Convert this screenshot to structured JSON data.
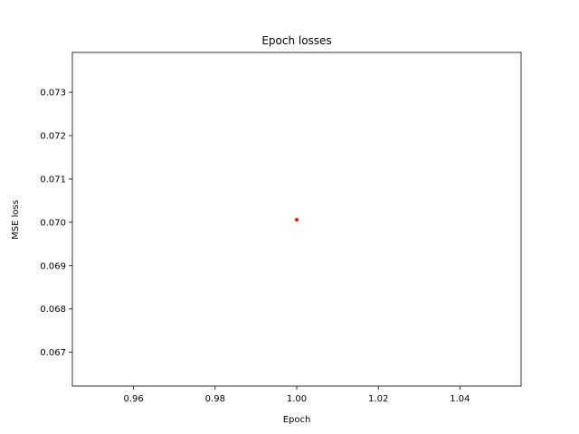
{
  "chart_data": {
    "type": "scatter",
    "title": "Epoch losses",
    "xlabel": "Epoch",
    "ylabel": "MSE loss",
    "xlim": [
      0.945,
      1.055
    ],
    "ylim": [
      0.06622,
      0.07392
    ],
    "xticks": [
      0.96,
      0.98,
      1.0,
      1.02,
      1.04
    ],
    "xtick_labels": [
      "0.96",
      "0.98",
      "1.00",
      "1.02",
      "1.04"
    ],
    "yticks": [
      0.067,
      0.068,
      0.069,
      0.07,
      0.071,
      0.072,
      0.073
    ],
    "ytick_labels": [
      "0.067",
      "0.068",
      "0.069",
      "0.070",
      "0.071",
      "0.072",
      "0.073"
    ],
    "grid": false,
    "series": [
      {
        "color": "#ff0000",
        "points": [
          {
            "x": 1.0,
            "y": 0.07006
          }
        ]
      }
    ]
  }
}
